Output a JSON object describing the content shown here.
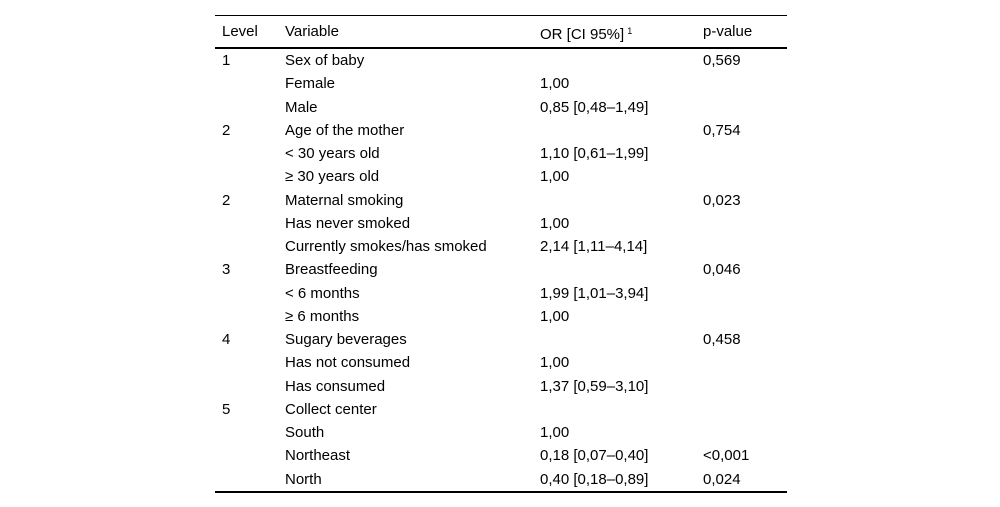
{
  "table": {
    "headers": {
      "level": "Level",
      "variable": "Variable",
      "or": "OR [CI 95%]",
      "or_superscript": "1",
      "p_value": "p-value"
    },
    "rows": [
      {
        "level": "1",
        "variable": "Sex of baby",
        "or": "",
        "p": "0,569"
      },
      {
        "level": "",
        "variable": "Female",
        "or": "1,00",
        "p": ""
      },
      {
        "level": "",
        "variable": "Male",
        "or": "0,85 [0,48–1,49]",
        "p": ""
      },
      {
        "level": "2",
        "variable": "Age of the mother",
        "or": "",
        "p": "0,754"
      },
      {
        "level": "",
        "variable": "< 30 years old",
        "or": "1,10 [0,61–1,99]",
        "p": ""
      },
      {
        "level": "",
        "variable": "≥ 30 years old",
        "or": "1,00",
        "p": ""
      },
      {
        "level": "2",
        "variable": "Maternal smoking",
        "or": "",
        "p": "0,023"
      },
      {
        "level": "",
        "variable": "Has never smoked",
        "or": "1,00",
        "p": ""
      },
      {
        "level": "",
        "variable": "Currently smokes/has smoked",
        "or": "2,14 [1,11–4,14]",
        "p": ""
      },
      {
        "level": "3",
        "variable": "Breastfeeding",
        "or": "",
        "p": "0,046"
      },
      {
        "level": "",
        "variable": "< 6 months",
        "or": "1,99 [1,01–3,94]",
        "p": ""
      },
      {
        "level": "",
        "variable": "≥ 6 months",
        "or": "1,00",
        "p": ""
      },
      {
        "level": "4",
        "variable": "Sugary beverages",
        "or": "",
        "p": "0,458"
      },
      {
        "level": "",
        "variable": "Has not consumed",
        "or": "1,00",
        "p": ""
      },
      {
        "level": "",
        "variable": "Has consumed",
        "or": "1,37 [0,59–3,10]",
        "p": ""
      },
      {
        "level": "5",
        "variable": "Collect center",
        "or": "",
        "p": ""
      },
      {
        "level": "",
        "variable": "South",
        "or": "1,00",
        "p": ""
      },
      {
        "level": "",
        "variable": "Northeast",
        "or": "0,18 [0,07–0,40]",
        "p": "<0,001"
      },
      {
        "level": "",
        "variable": "North",
        "or": "0,40 [0,18–0,89]",
        "p": "0,024"
      }
    ],
    "colors": {
      "text": "#000000",
      "background": "#ffffff",
      "rule": "#000000"
    }
  }
}
